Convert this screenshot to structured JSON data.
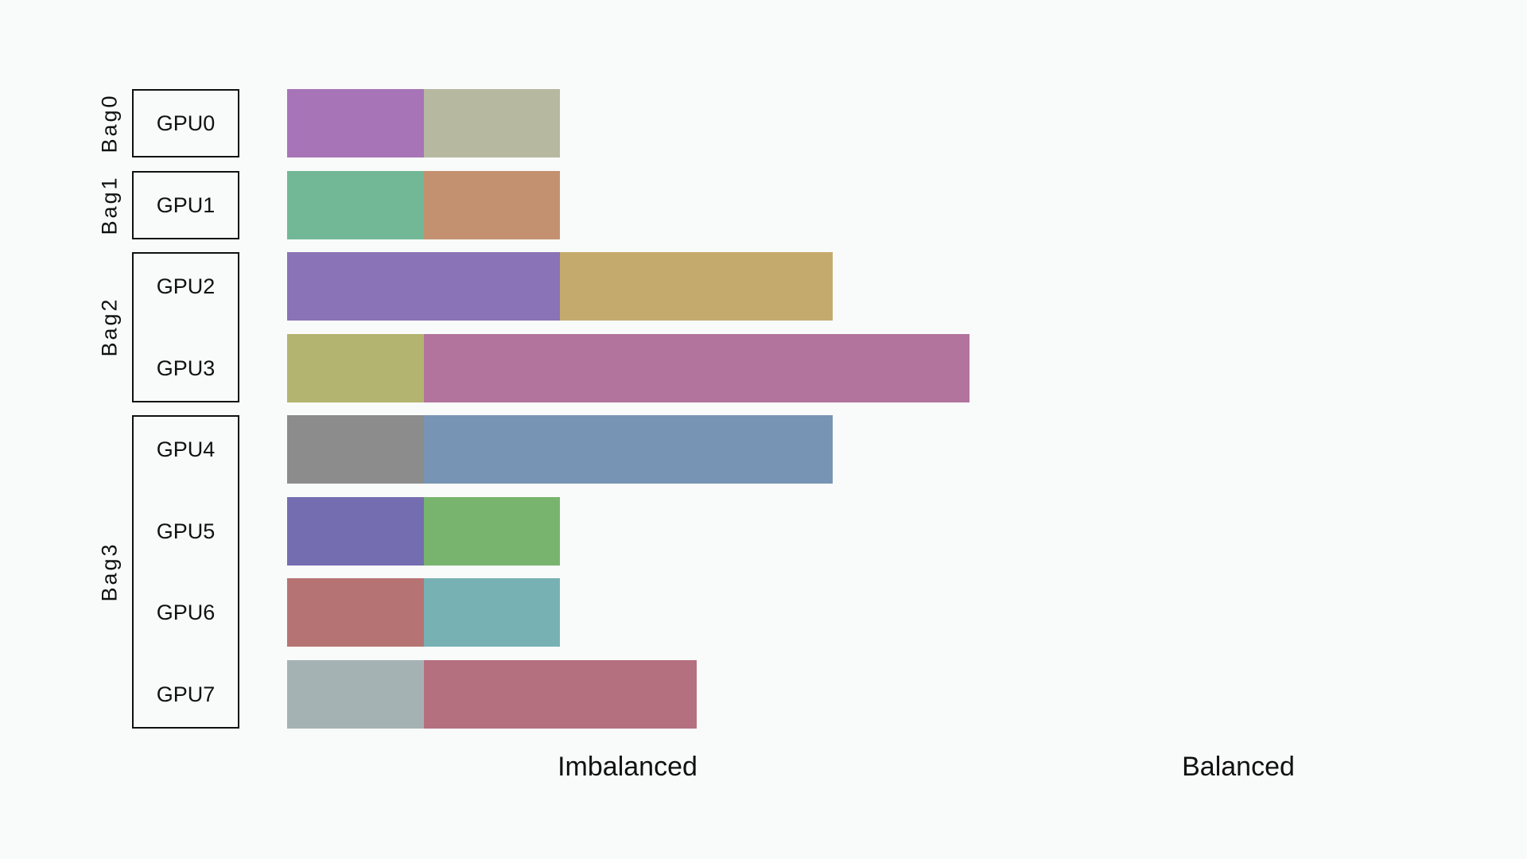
{
  "bags": [
    {
      "label": "Bag0",
      "gpus": [
        0
      ]
    },
    {
      "label": "Bag1",
      "gpus": [
        1
      ]
    },
    {
      "label": "Bag2",
      "gpus": [
        2,
        3
      ]
    },
    {
      "label": "Bag3",
      "gpus": [
        4,
        5,
        6,
        7
      ]
    }
  ],
  "gpus": [
    {
      "label": "GPU0",
      "segments": [
        {
          "length": 1,
          "color": "#a874b8"
        },
        {
          "length": 1,
          "color": "#b6b9a0"
        }
      ]
    },
    {
      "label": "GPU1",
      "segments": [
        {
          "length": 1,
          "color": "#72b896"
        },
        {
          "length": 1,
          "color": "#c3916f"
        }
      ]
    },
    {
      "label": "GPU2",
      "segments": [
        {
          "length": 2,
          "color": "#8a73b6"
        },
        {
          "length": 2,
          "color": "#c5aa6d"
        }
      ]
    },
    {
      "label": "GPU3",
      "segments": [
        {
          "length": 1,
          "color": "#b3b46f"
        },
        {
          "length": 4,
          "color": "#b2739d"
        }
      ]
    },
    {
      "label": "GPU4",
      "segments": [
        {
          "length": 1,
          "color": "#8c8c8c"
        },
        {
          "length": 3,
          "color": "#7794b4"
        }
      ]
    },
    {
      "label": "GPU5",
      "segments": [
        {
          "length": 1,
          "color": "#746eb1"
        },
        {
          "length": 1,
          "color": "#78b46e"
        }
      ]
    },
    {
      "label": "GPU6",
      "segments": [
        {
          "length": 1,
          "color": "#b57473"
        },
        {
          "length": 1,
          "color": "#77b1b3"
        }
      ]
    },
    {
      "label": "GPU7",
      "segments": [
        {
          "length": 1,
          "color": "#a5b2b3"
        },
        {
          "length": 2,
          "color": "#b5707f"
        }
      ]
    }
  ],
  "captions": {
    "imbalanced": "Imbalanced",
    "balanced": "Balanced"
  }
}
